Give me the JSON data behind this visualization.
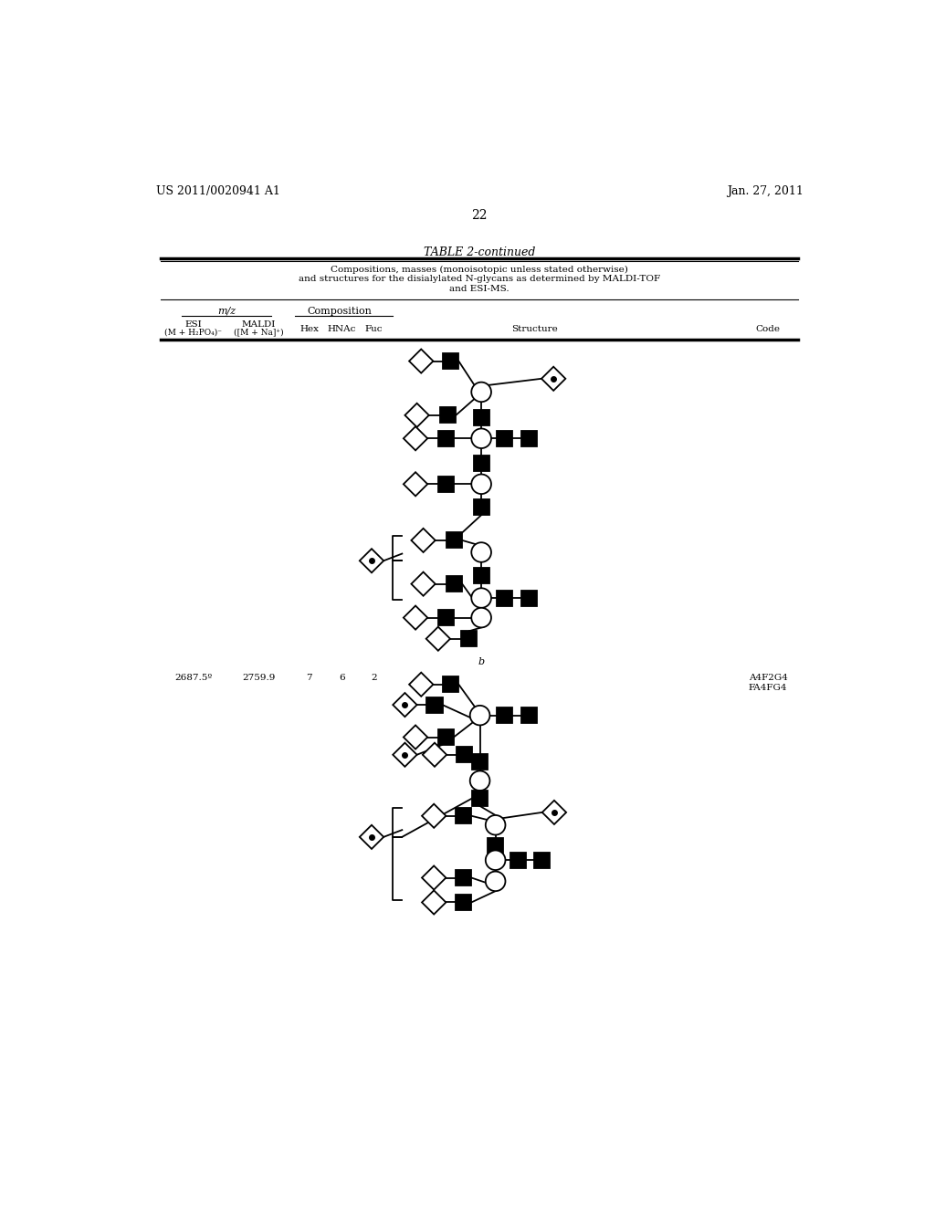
{
  "page_header_left": "US 2011/0020941 A1",
  "page_header_right": "Jan. 27, 2011",
  "page_number": "22",
  "table_title": "TABLE 2-continued",
  "table_subtitle": "Compositions, masses (monoisotopic unless stated otherwise)\nand structures for the disialylated N-glycans as determined by MALDI-TOF\nand ESI-MS.",
  "row2_esi": "2687.5º",
  "row2_maldi": "2759.9",
  "row2_hex": "7",
  "row2_hnac": "6",
  "row2_fuc": "2",
  "row2_code": "A4F2G4\nFA4FG4"
}
